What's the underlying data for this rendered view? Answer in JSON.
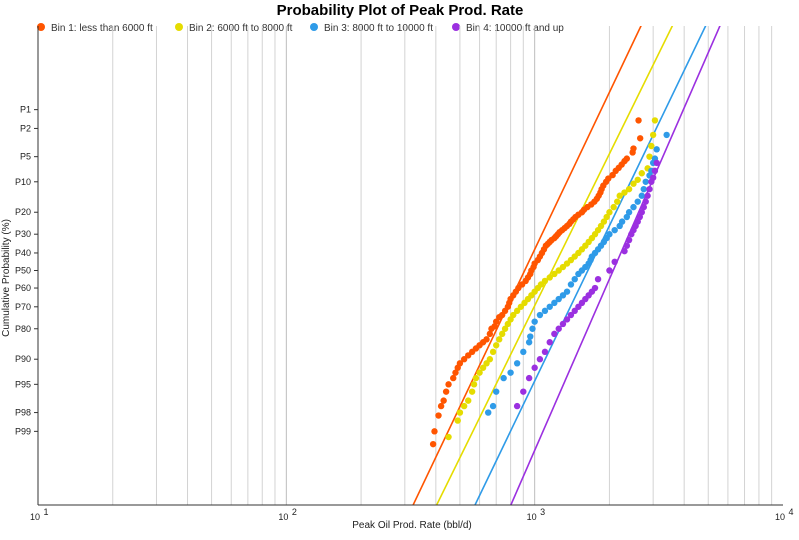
{
  "chart_data": {
    "type": "scatter",
    "title": "Probability Plot of Peak Prod. Rate",
    "xlabel": "Peak Oil Prod. Rate (bbl/d)",
    "ylabel": "Cumulative Probability (%)",
    "x_scale": "log",
    "y_scale": "normal-probability",
    "xlim": [
      10,
      10000
    ],
    "x_ticks": [
      {
        "value": 10,
        "base": "10",
        "exp": "1"
      },
      {
        "value": 100,
        "base": "10",
        "exp": "2"
      },
      {
        "value": 1000,
        "base": "10",
        "exp": "3"
      },
      {
        "value": 10000,
        "base": "10",
        "exp": "4"
      }
    ],
    "y_ticks": [
      {
        "p": 1,
        "label": "P1"
      },
      {
        "p": 2,
        "label": "P2"
      },
      {
        "p": 5,
        "label": "P5"
      },
      {
        "p": 10,
        "label": "P10"
      },
      {
        "p": 20,
        "label": "P20"
      },
      {
        "p": 30,
        "label": "P30"
      },
      {
        "p": 40,
        "label": "P40"
      },
      {
        "p": 50,
        "label": "P50"
      },
      {
        "p": 60,
        "label": "P60"
      },
      {
        "p": 70,
        "label": "P70"
      },
      {
        "p": 80,
        "label": "P80"
      },
      {
        "p": 90,
        "label": "P90"
      },
      {
        "p": 95,
        "label": "P95"
      },
      {
        "p": 98,
        "label": "P98"
      },
      {
        "p": 99,
        "label": "P99"
      }
    ],
    "grid": "vertical",
    "legend_position": "top-left",
    "series": [
      {
        "name": "Bin 1: less than 6000 ft",
        "color": "#ff5500",
        "fit_line": {
          "x_at_p0": 2800,
          "x_at_p100": 310
        },
        "points": [
          [
            2620,
            1.5
          ],
          [
            2660,
            2.8
          ],
          [
            2500,
            3.9
          ],
          [
            2480,
            4.4
          ],
          [
            2350,
            5.3
          ],
          [
            2300,
            5.7
          ],
          [
            2240,
            6.3
          ],
          [
            2180,
            6.9
          ],
          [
            2120,
            7.5
          ],
          [
            2060,
            8.4
          ],
          [
            1980,
            9.2
          ],
          [
            1940,
            10
          ],
          [
            1890,
            11
          ],
          [
            1860,
            12
          ],
          [
            1840,
            13
          ],
          [
            1810,
            14
          ],
          [
            1780,
            15
          ],
          [
            1740,
            16
          ],
          [
            1690,
            17
          ],
          [
            1630,
            18
          ],
          [
            1580,
            19
          ],
          [
            1550,
            20
          ],
          [
            1500,
            21
          ],
          [
            1460,
            22
          ],
          [
            1430,
            23
          ],
          [
            1400,
            24
          ],
          [
            1380,
            25
          ],
          [
            1350,
            26
          ],
          [
            1320,
            27
          ],
          [
            1290,
            28
          ],
          [
            1260,
            29
          ],
          [
            1240,
            30
          ],
          [
            1220,
            31
          ],
          [
            1200,
            32
          ],
          [
            1170,
            33
          ],
          [
            1150,
            34
          ],
          [
            1130,
            35
          ],
          [
            1110,
            36
          ],
          [
            1090,
            38
          ],
          [
            1070,
            40
          ],
          [
            1050,
            42
          ],
          [
            1030,
            44
          ],
          [
            1000,
            46
          ],
          [
            990,
            48
          ],
          [
            970,
            50
          ],
          [
            960,
            52
          ],
          [
            940,
            54
          ],
          [
            920,
            56
          ],
          [
            890,
            58
          ],
          [
            860,
            60
          ],
          [
            840,
            62
          ],
          [
            820,
            64
          ],
          [
            800,
            66
          ],
          [
            790,
            68
          ],
          [
            780,
            70
          ],
          [
            760,
            72
          ],
          [
            740,
            74
          ],
          [
            720,
            75
          ],
          [
            700,
            77
          ],
          [
            690,
            79
          ],
          [
            670,
            80
          ],
          [
            660,
            82
          ],
          [
            640,
            84
          ],
          [
            620,
            85
          ],
          [
            600,
            86
          ],
          [
            580,
            87
          ],
          [
            560,
            88
          ],
          [
            540,
            89
          ],
          [
            520,
            90
          ],
          [
            500,
            91
          ],
          [
            490,
            92
          ],
          [
            480,
            93
          ],
          [
            470,
            94
          ],
          [
            450,
            95
          ],
          [
            440,
            96
          ],
          [
            430,
            97
          ],
          [
            420,
            97.5
          ],
          [
            410,
            98.2
          ],
          [
            395,
            99
          ],
          [
            390,
            99.4
          ]
        ]
      },
      {
        "name": "Bin 2: 6000 ft to 8000 ft",
        "color": "#e5dc00",
        "fit_line": {
          "x_at_p0": 3750,
          "x_at_p100": 385
        },
        "points": [
          [
            3050,
            1.5
          ],
          [
            3000,
            2.5
          ],
          [
            2950,
            3.6
          ],
          [
            2900,
            5
          ],
          [
            2850,
            7
          ],
          [
            2700,
            8
          ],
          [
            2600,
            9.5
          ],
          [
            2500,
            10.5
          ],
          [
            2400,
            12
          ],
          [
            2300,
            13
          ],
          [
            2200,
            14
          ],
          [
            2150,
            16
          ],
          [
            2080,
            18
          ],
          [
            2000,
            20
          ],
          [
            1950,
            22
          ],
          [
            1900,
            24
          ],
          [
            1850,
            26
          ],
          [
            1800,
            28
          ],
          [
            1750,
            30
          ],
          [
            1700,
            32
          ],
          [
            1650,
            34
          ],
          [
            1600,
            36
          ],
          [
            1550,
            38
          ],
          [
            1500,
            40
          ],
          [
            1450,
            42
          ],
          [
            1400,
            44
          ],
          [
            1350,
            46
          ],
          [
            1300,
            48
          ],
          [
            1250,
            50
          ],
          [
            1200,
            52
          ],
          [
            1150,
            54
          ],
          [
            1100,
            56
          ],
          [
            1060,
            58
          ],
          [
            1030,
            60
          ],
          [
            1000,
            62
          ],
          [
            970,
            64
          ],
          [
            940,
            66
          ],
          [
            910,
            68
          ],
          [
            880,
            70
          ],
          [
            850,
            72
          ],
          [
            820,
            74
          ],
          [
            800,
            76
          ],
          [
            780,
            78
          ],
          [
            760,
            80
          ],
          [
            740,
            82
          ],
          [
            720,
            84
          ],
          [
            700,
            86
          ],
          [
            680,
            88
          ],
          [
            660,
            90
          ],
          [
            640,
            91
          ],
          [
            620,
            92
          ],
          [
            600,
            93
          ],
          [
            580,
            94
          ],
          [
            570,
            95
          ],
          [
            560,
            96
          ],
          [
            540,
            97
          ],
          [
            520,
            97.5
          ],
          [
            500,
            98
          ],
          [
            490,
            98.5
          ],
          [
            450,
            99.2
          ]
        ]
      },
      {
        "name": "Bin 3: 8000 ft to 10000 ft",
        "color": "#2f9be8",
        "fit_line": {
          "x_at_p0": 5100,
          "x_at_p100": 550
        },
        "points": [
          [
            3400,
            2.5
          ],
          [
            3100,
            4
          ],
          [
            3050,
            5.3
          ],
          [
            3000,
            6
          ],
          [
            2950,
            7.5
          ],
          [
            2900,
            8.5
          ],
          [
            2800,
            10
          ],
          [
            2750,
            12
          ],
          [
            2700,
            14
          ],
          [
            2600,
            16
          ],
          [
            2500,
            18
          ],
          [
            2400,
            20
          ],
          [
            2350,
            22
          ],
          [
            2250,
            24
          ],
          [
            2200,
            26
          ],
          [
            2100,
            28
          ],
          [
            2000,
            30
          ],
          [
            1950,
            32
          ],
          [
            1900,
            34
          ],
          [
            1850,
            36
          ],
          [
            1800,
            38
          ],
          [
            1750,
            40
          ],
          [
            1700,
            42
          ],
          [
            1680,
            44
          ],
          [
            1650,
            46
          ],
          [
            1600,
            48
          ],
          [
            1550,
            50
          ],
          [
            1500,
            52
          ],
          [
            1450,
            55
          ],
          [
            1400,
            58
          ],
          [
            1350,
            62
          ],
          [
            1300,
            64
          ],
          [
            1250,
            66
          ],
          [
            1200,
            68
          ],
          [
            1150,
            70
          ],
          [
            1100,
            72
          ],
          [
            1050,
            74
          ],
          [
            1000,
            77
          ],
          [
            980,
            80
          ],
          [
            960,
            83
          ],
          [
            950,
            85
          ],
          [
            900,
            88
          ],
          [
            850,
            91
          ],
          [
            800,
            93
          ],
          [
            750,
            94
          ],
          [
            700,
            96
          ],
          [
            680,
            97.5
          ],
          [
            650,
            98
          ]
        ]
      },
      {
        "name": "Bin 4: 10000 ft and up",
        "color": "#9b30e0",
        "fit_line": {
          "x_at_p0": 5800,
          "x_at_p100": 770
        },
        "points": [
          [
            3100,
            6
          ],
          [
            3050,
            7.5
          ],
          [
            3000,
            9
          ],
          [
            2950,
            10
          ],
          [
            2900,
            12
          ],
          [
            2850,
            14
          ],
          [
            2800,
            16
          ],
          [
            2750,
            18
          ],
          [
            2700,
            20
          ],
          [
            2650,
            22
          ],
          [
            2600,
            24
          ],
          [
            2550,
            26
          ],
          [
            2500,
            28
          ],
          [
            2450,
            30
          ],
          [
            2400,
            33
          ],
          [
            2350,
            36
          ],
          [
            2300,
            39
          ],
          [
            2100,
            45
          ],
          [
            2000,
            50
          ],
          [
            1800,
            55
          ],
          [
            1750,
            60
          ],
          [
            1700,
            62
          ],
          [
            1650,
            64
          ],
          [
            1600,
            66
          ],
          [
            1550,
            68
          ],
          [
            1500,
            70
          ],
          [
            1450,
            72
          ],
          [
            1400,
            74
          ],
          [
            1350,
            76
          ],
          [
            1300,
            78
          ],
          [
            1250,
            80
          ],
          [
            1200,
            82
          ],
          [
            1150,
            85
          ],
          [
            1100,
            88
          ],
          [
            1050,
            90
          ],
          [
            1000,
            92
          ],
          [
            950,
            94
          ],
          [
            900,
            96
          ],
          [
            850,
            97.5
          ]
        ]
      }
    ]
  }
}
